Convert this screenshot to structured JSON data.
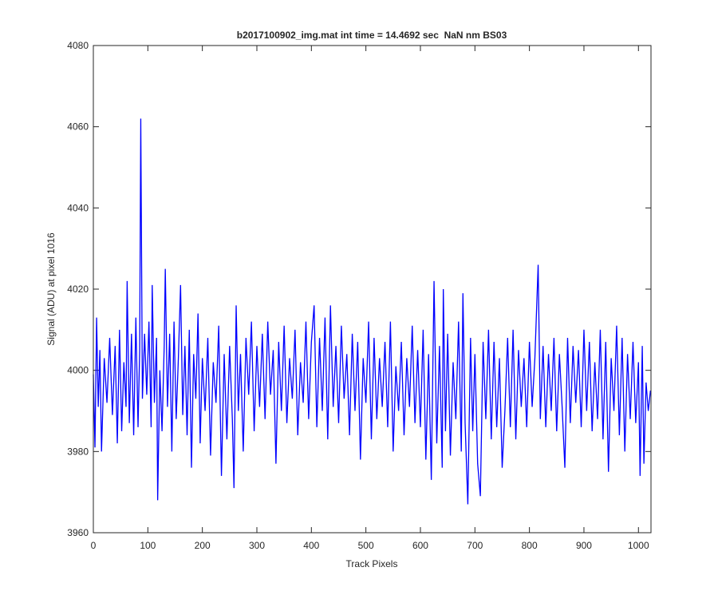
{
  "chart_data": {
    "type": "line",
    "title": "b2017100902_img.mat int time = 14.4692 sec  NaN nm BS03",
    "xlabel": "Track Pixels",
    "ylabel": "Signal (ADU) at pixel 1016",
    "xlim": [
      0,
      1023
    ],
    "ylim": [
      3960,
      4080
    ],
    "xticks": [
      0,
      100,
      200,
      300,
      400,
      500,
      600,
      700,
      800,
      900,
      1000
    ],
    "yticks": [
      3960,
      3980,
      4000,
      4020,
      4040,
      4060,
      4080
    ],
    "grid": false,
    "series": [
      {
        "color": "#0000ff",
        "x": [
          0,
          3,
          6,
          9,
          12,
          15,
          20,
          25,
          30,
          35,
          40,
          44,
          48,
          52,
          56,
          60,
          62,
          66,
          70,
          74,
          78,
          82,
          85,
          87,
          90,
          94,
          98,
          102,
          106,
          108,
          112,
          116,
          118,
          122,
          126,
          130,
          132,
          136,
          140,
          144,
          148,
          152,
          156,
          160,
          164,
          168,
          172,
          176,
          180,
          184,
          188,
          192,
          196,
          200,
          205,
          210,
          215,
          220,
          225,
          230,
          235,
          240,
          245,
          250,
          255,
          258,
          262,
          266,
          270,
          275,
          280,
          285,
          290,
          295,
          300,
          305,
          310,
          315,
          320,
          325,
          330,
          335,
          340,
          345,
          350,
          355,
          360,
          365,
          370,
          375,
          380,
          385,
          390,
          395,
          400,
          405,
          410,
          415,
          420,
          425,
          430,
          435,
          440,
          445,
          450,
          455,
          460,
          465,
          470,
          475,
          480,
          485,
          490,
          495,
          500,
          505,
          510,
          515,
          520,
          525,
          530,
          535,
          540,
          545,
          550,
          555,
          560,
          565,
          570,
          575,
          580,
          585,
          590,
          595,
          600,
          605,
          610,
          615,
          620,
          625,
          630,
          635,
          640,
          642,
          646,
          650,
          655,
          660,
          665,
          670,
          675,
          678,
          682,
          687,
          692,
          696,
          700,
          705,
          710,
          715,
          720,
          725,
          730,
          735,
          740,
          745,
          750,
          755,
          760,
          765,
          770,
          775,
          780,
          785,
          790,
          795,
          800,
          805,
          810,
          816,
          820,
          825,
          830,
          835,
          840,
          845,
          850,
          855,
          860,
          865,
          870,
          875,
          880,
          885,
          890,
          895,
          900,
          905,
          910,
          915,
          920,
          925,
          930,
          935,
          940,
          945,
          950,
          955,
          960,
          965,
          970,
          975,
          980,
          985,
          990,
          995,
          1000,
          1003,
          1007,
          1010,
          1014,
          1018,
          1022
        ],
        "values": [
          3999,
          3981,
          4013,
          3991,
          4005,
          3980,
          4003,
          3992,
          4008,
          3989,
          4006,
          3982,
          4010,
          3985,
          4002,
          3991,
          4022,
          3987,
          4009,
          3984,
          4013,
          3986,
          4005,
          4062,
          3993,
          4009,
          3994,
          4012,
          3986,
          4021,
          3992,
          4008,
          3968,
          4000,
          3985,
          4006,
          4025,
          3991,
          4009,
          3980,
          4012,
          3988,
          4003,
          4021,
          3989,
          4006,
          3984,
          4010,
          3976,
          4004,
          3993,
          4014,
          3982,
          4003,
          3990,
          4008,
          3979,
          4002,
          3992,
          4011,
          3974,
          4004,
          3983,
          4006,
          3988,
          3971,
          4016,
          3990,
          4004,
          3980,
          4008,
          3994,
          4012,
          3985,
          4006,
          3991,
          4009,
          3988,
          4012,
          3994,
          4005,
          3977,
          4007,
          3990,
          4011,
          3987,
          4003,
          3993,
          4010,
          3984,
          4002,
          3992,
          4012,
          3988,
          4007,
          4016,
          3986,
          4008,
          3990,
          4013,
          3983,
          4016,
          3991,
          4006,
          3987,
          4011,
          3993,
          4004,
          3984,
          4009,
          3990,
          4007,
          3978,
          4003,
          3992,
          4012,
          3983,
          4008,
          3988,
          4003,
          3991,
          4007,
          3986,
          4012,
          3980,
          4001,
          3990,
          4007,
          3984,
          4003,
          3991,
          4011,
          3987,
          4005,
          3986,
          4010,
          3978,
          4004,
          3973,
          4022,
          3982,
          4006,
          3976,
          4020,
          3985,
          4009,
          3979,
          4002,
          3988,
          4012,
          3980,
          4019,
          3987,
          3967,
          4008,
          3985,
          4004,
          3977,
          3969,
          4007,
          3988,
          4010,
          3983,
          4007,
          3986,
          4003,
          3976,
          3990,
          4008,
          3986,
          4010,
          3983,
          4005,
          3991,
          4003,
          3986,
          4007,
          3991,
          4003,
          4026,
          3988,
          4006,
          3986,
          4004,
          3990,
          4008,
          3985,
          4004,
          3991,
          3976,
          4008,
          3987,
          4006,
          3992,
          4005,
          3986,
          4010,
          3990,
          4007,
          3985,
          4002,
          3988,
          4010,
          3983,
          4007,
          3975,
          4003,
          3990,
          4011,
          3984,
          4008,
          3980,
          4004,
          3988,
          4007,
          3987,
          4002,
          3974,
          4006,
          3977,
          3997,
          3990,
          3995
        ]
      }
    ]
  }
}
